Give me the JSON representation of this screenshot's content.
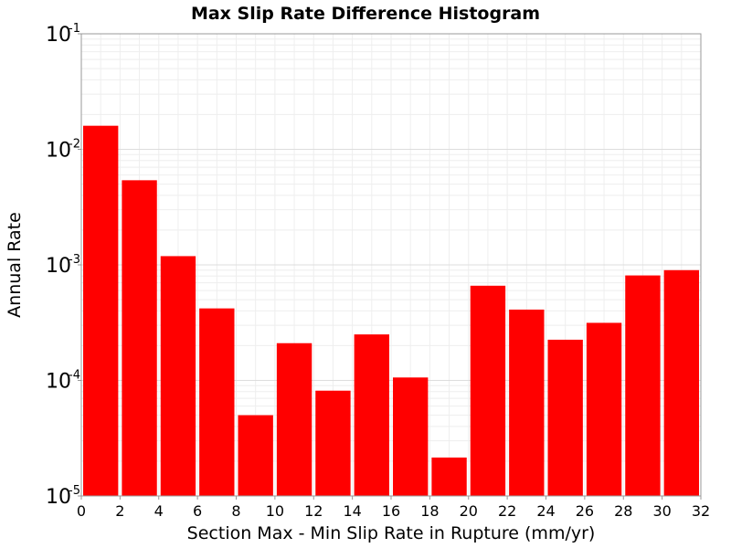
{
  "chart_data": {
    "type": "bar",
    "title": "Max Slip Rate Difference Histogram",
    "xlabel": "Section Max - Min Slip Rate in Rupture (mm/yr)",
    "ylabel": "Annual Rate",
    "yscale": "log",
    "ylim": [
      1e-05,
      0.1
    ],
    "xlim": [
      0,
      32
    ],
    "grid": true,
    "bar_color": "#ff0000",
    "bin_width": 2,
    "x": [
      1,
      3,
      5,
      7,
      9,
      11,
      13,
      15,
      17,
      19,
      21,
      23,
      25,
      27,
      29,
      31
    ],
    "values": [
      0.016,
      0.0054,
      0.00119,
      0.00042,
      5e-05,
      0.00021,
      8.15e-05,
      0.00025,
      0.000106,
      2.15e-05,
      0.00066,
      0.00041,
      0.000225,
      0.000315,
      0.00081,
      0.0009
    ],
    "xticks": [
      "0",
      "2",
      "4",
      "6",
      "8",
      "10",
      "12",
      "14",
      "16",
      "18",
      "20",
      "22",
      "24",
      "26",
      "28",
      "30",
      "32"
    ],
    "yticks": [
      {
        "base": "10",
        "exp": "-5"
      },
      {
        "base": "10",
        "exp": "-4"
      },
      {
        "base": "10",
        "exp": "-3"
      },
      {
        "base": "10",
        "exp": "-2"
      },
      {
        "base": "10",
        "exp": "-1"
      }
    ]
  }
}
